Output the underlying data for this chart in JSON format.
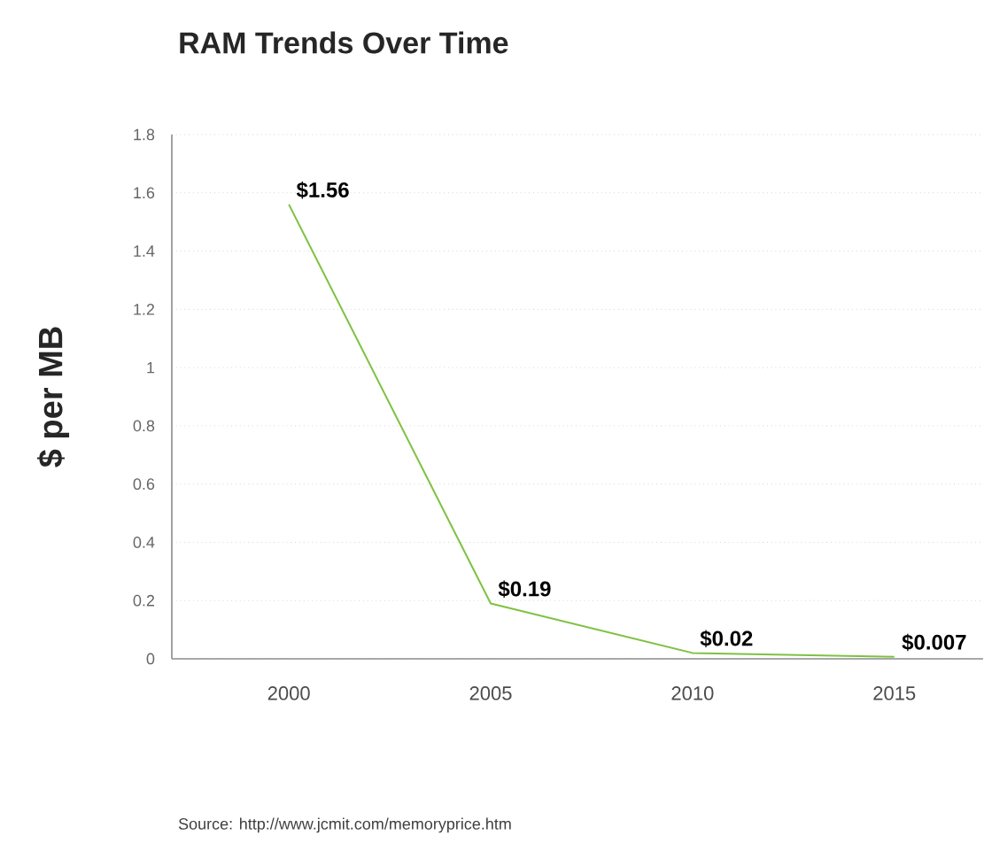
{
  "chart_data": {
    "type": "line",
    "title": "RAM Trends Over Time",
    "ylabel": "$ per MB",
    "categories": [
      "2000",
      "2005",
      "2010",
      "2015"
    ],
    "values": [
      1.56,
      0.19,
      0.02,
      0.007
    ],
    "value_labels": [
      "$1.56",
      "$0.19",
      "$0.02",
      "$0.007"
    ],
    "color": "#7dc242",
    "ylim": [
      0,
      1.8
    ],
    "yticks": [
      0,
      0.2,
      0.4,
      0.6,
      0.8,
      1,
      1.2,
      1.4,
      1.6,
      1.8
    ],
    "grid": "y",
    "marker": "none",
    "line_style": "solid",
    "annotations": [
      "Source: http://www.jcmit.com/memoryprice.htm"
    ]
  }
}
